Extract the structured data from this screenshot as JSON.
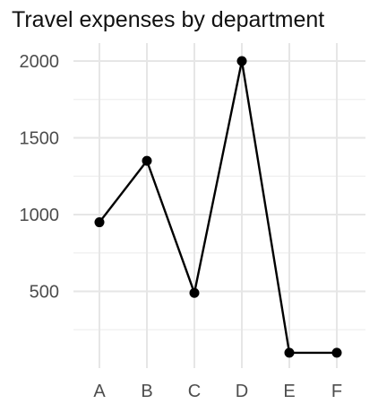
{
  "chart_data": {
    "type": "line",
    "title": "Travel expenses by department",
    "xlabel": "",
    "ylabel": "",
    "categories": [
      "A",
      "B",
      "C",
      "D",
      "E",
      "F"
    ],
    "series": [
      {
        "values": [
          950,
          1350,
          490,
          2000,
          100,
          100
        ]
      }
    ],
    "ylim": [
      0,
      2050
    ],
    "yticks": [
      500,
      1000,
      1500,
      2000
    ],
    "grid": true,
    "legend": "none",
    "colors": {
      "line": "#000000",
      "grid": "#e6e6e6",
      "tick_text": "#4d4d4d"
    }
  }
}
